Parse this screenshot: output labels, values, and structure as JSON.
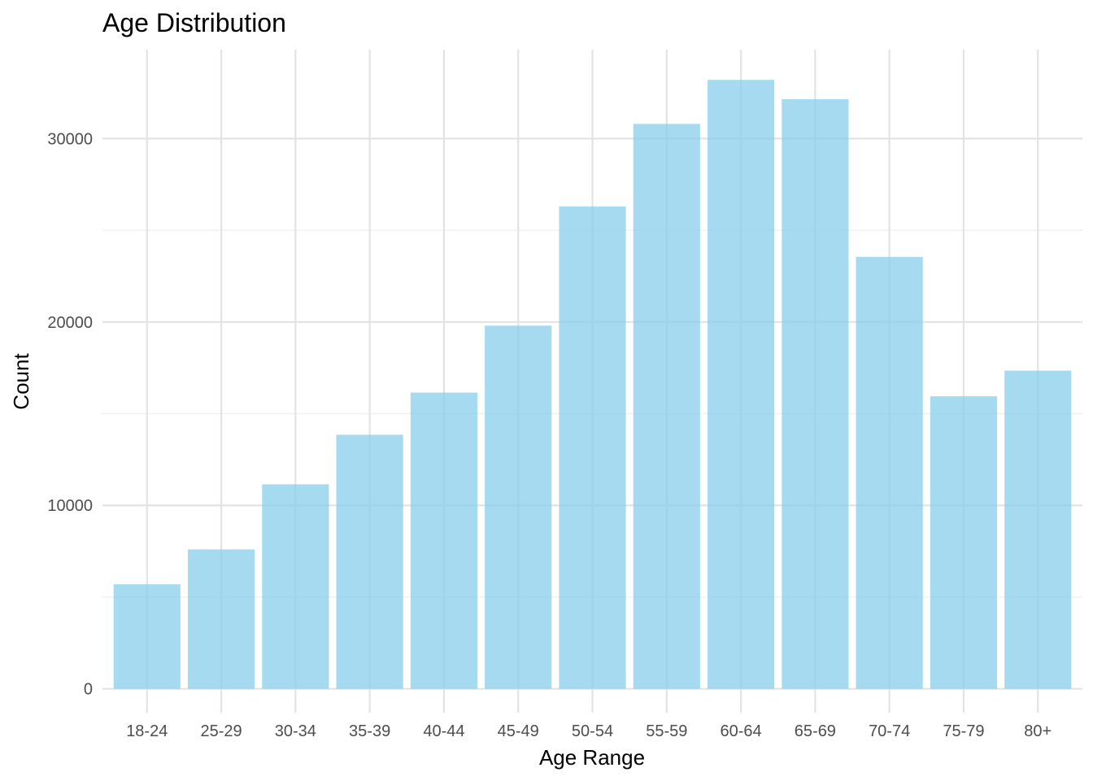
{
  "chart_data": {
    "type": "bar",
    "title": "Age Distribution",
    "xlabel": "Age Range",
    "ylabel": "Count",
    "categories": [
      "18-24",
      "25-29",
      "30-34",
      "35-39",
      "40-44",
      "45-49",
      "50-54",
      "55-59",
      "60-64",
      "65-69",
      "70-74",
      "75-79",
      "80+"
    ],
    "values": [
      5700,
      7600,
      11150,
      13850,
      16150,
      19800,
      26300,
      30800,
      33200,
      32150,
      23550,
      15950,
      17350
    ],
    "yticks": [
      0,
      10000,
      20000,
      30000
    ],
    "ylim": [
      -1300,
      34850
    ],
    "grid": true,
    "legend": "none",
    "colors": {
      "bar": "#87ceeb",
      "bar_opacity": 0.75,
      "grid": "#e3e3e3",
      "tick_text": "#4d4d4d"
    }
  }
}
